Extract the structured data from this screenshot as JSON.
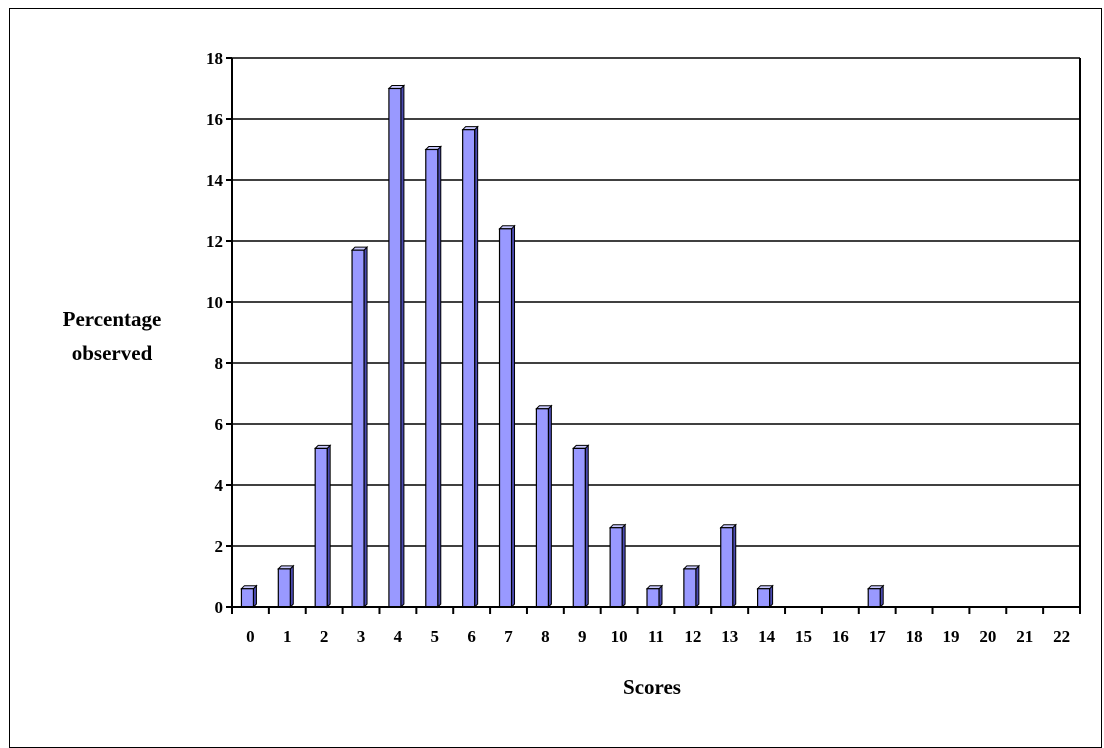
{
  "chart_data": {
    "type": "bar",
    "categories": [
      "0",
      "1",
      "2",
      "3",
      "4",
      "5",
      "6",
      "7",
      "8",
      "9",
      "10",
      "11",
      "12",
      "13",
      "14",
      "15",
      "16",
      "17",
      "18",
      "19",
      "20",
      "21",
      "22"
    ],
    "values": [
      0.6,
      1.25,
      5.2,
      11.7,
      17.0,
      15.0,
      15.65,
      12.4,
      6.5,
      5.2,
      2.6,
      0.6,
      1.25,
      2.6,
      0.6,
      0,
      0,
      0.6,
      0,
      0,
      0,
      0,
      0
    ],
    "xlabel": "Scores",
    "ylabel_lines": [
      "Percentage",
      "observed"
    ],
    "ylim": [
      0,
      18
    ],
    "yticks": [
      "0",
      "2",
      "4",
      "6",
      "8",
      "10",
      "12",
      "14",
      "16",
      "18"
    ],
    "grid": true,
    "colors": {
      "bar_face": "#9999ff",
      "bar_side": "#4a4ab0",
      "bar_top": "#c8c8ff",
      "gridline": "#000000"
    }
  }
}
